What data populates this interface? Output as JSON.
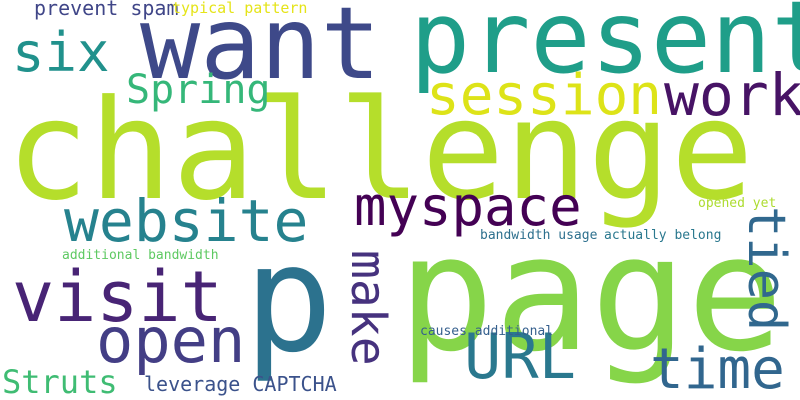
{
  "words": [
    {
      "text": "challenge",
      "color": "#b5de2b"
    },
    {
      "text": "page",
      "color": "#86d549"
    },
    {
      "text": "present",
      "color": "#1f9e89"
    },
    {
      "text": "want",
      "color": "#3e4989"
    },
    {
      "text": "p",
      "color": "#2c728e"
    },
    {
      "text": "visit",
      "color": "#482475"
    },
    {
      "text": "website",
      "color": "#26828e"
    },
    {
      "text": "myspace",
      "color": "#440154"
    },
    {
      "text": "session",
      "color": "#dde318"
    },
    {
      "text": "work",
      "color": "#471365"
    },
    {
      "text": "six",
      "color": "#21918c"
    },
    {
      "text": "open",
      "color": "#433e85"
    },
    {
      "text": "URL",
      "color": "#2a788e"
    },
    {
      "text": "time",
      "color": "#31668e"
    },
    {
      "text": "tied",
      "color": "#31688e"
    },
    {
      "text": "make",
      "color": "#46327e"
    },
    {
      "text": "Spring",
      "color": "#35b779"
    },
    {
      "text": "Struts",
      "color": "#3fbc73"
    },
    {
      "text": "leverage CAPTCHA",
      "color": "#3b528b"
    },
    {
      "text": "prevent spam",
      "color": "#404688"
    },
    {
      "text": "typical pattern",
      "color": "#e5e419"
    },
    {
      "text": "additional bandwidth",
      "color": "#5ec962"
    },
    {
      "text": "bandwidth usage",
      "color": "#2d708e"
    },
    {
      "text": "actually belong",
      "color": "#2a788e"
    },
    {
      "text": "opened yet",
      "color": "#addc30"
    },
    {
      "text": "causes additional",
      "color": "#355f8d"
    }
  ]
}
